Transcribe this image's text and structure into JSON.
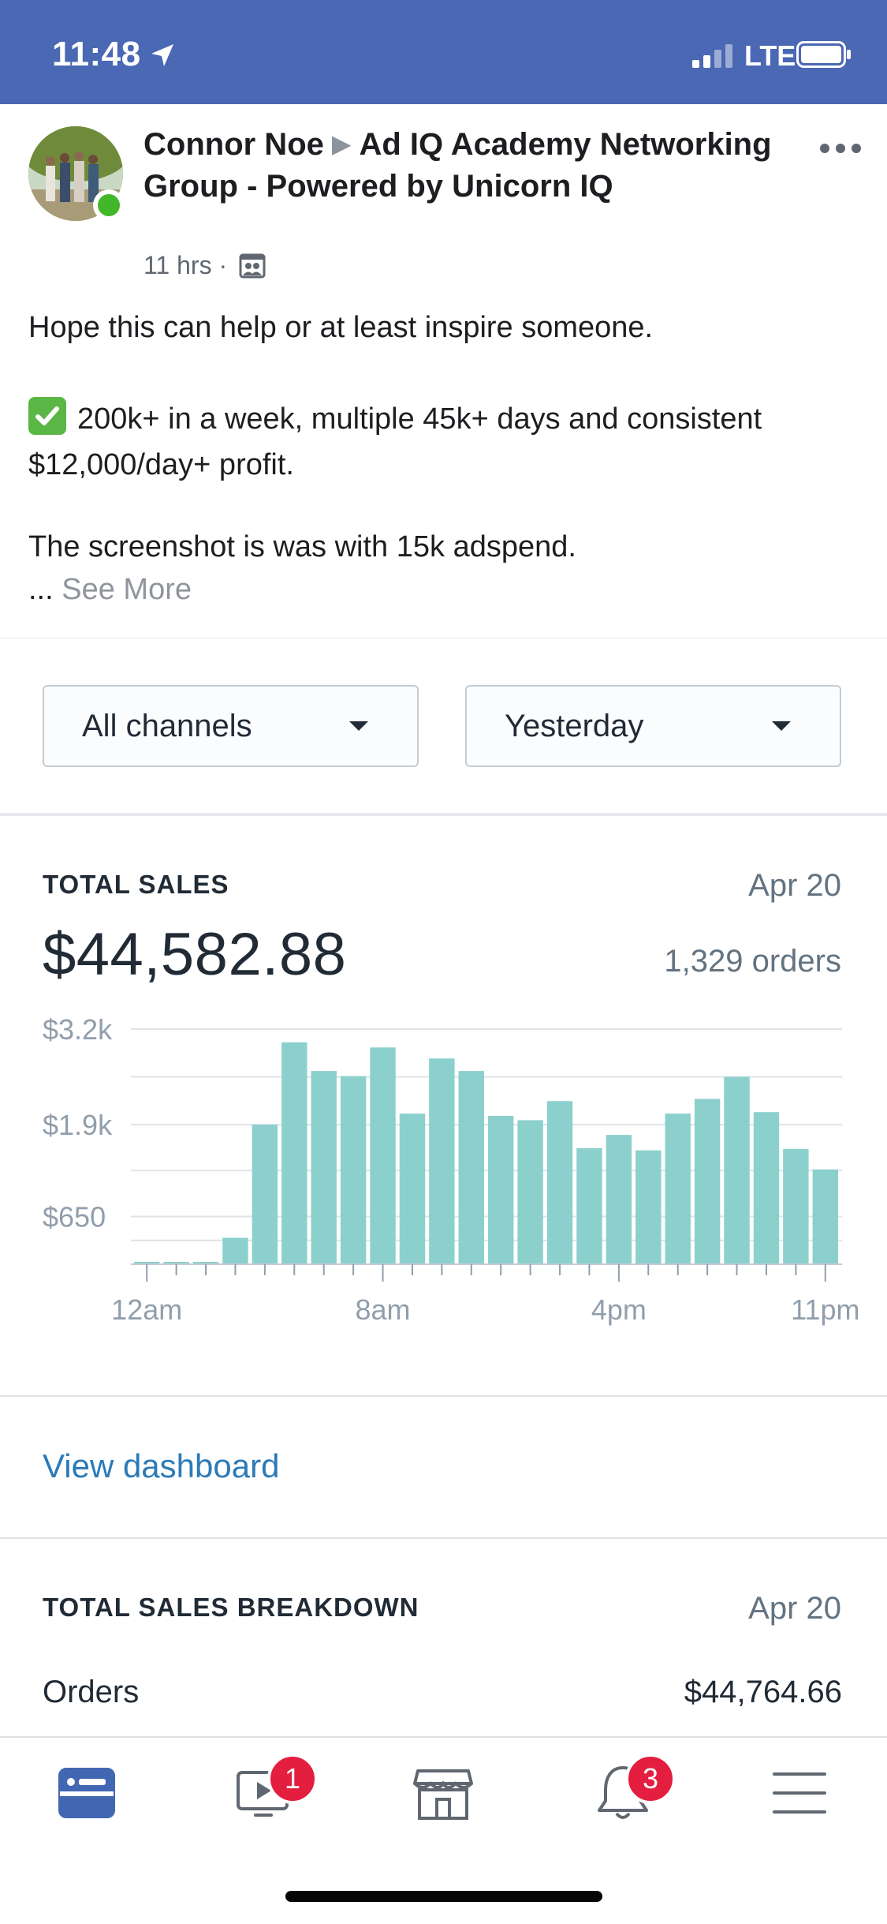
{
  "status_bar": {
    "time": "11:48",
    "network": "LTE"
  },
  "post": {
    "author": "Connor Noe",
    "group": "Ad IQ Academy Networking Group - Powered by Unicorn IQ",
    "time_ago": "11 hrs",
    "separator": "·",
    "lines": [
      "Hope this can help or at least inspire someone.",
      "200k+ in a week, multiple 45k+ days and consistent $12,000/day+ profit.",
      "The screenshot is was with 15k adspend."
    ],
    "ellipsis": "...",
    "see_more": "See More"
  },
  "dashboard": {
    "channel_select": "All channels",
    "date_select": "Yesterday",
    "total_sales": {
      "label": "TOTAL SALES",
      "date": "Apr 20",
      "amount": "$44,582.88",
      "orders": "1,329 orders"
    },
    "view_dashboard": "View dashboard",
    "breakdown": {
      "label": "TOTAL SALES BREAKDOWN",
      "date": "Apr 20",
      "rows": [
        {
          "label": "Orders",
          "value": "$44,764.66"
        }
      ]
    }
  },
  "chart_data": {
    "type": "bar",
    "y_tick_labels": [
      "$3.2k",
      "$1.9k",
      "$650"
    ],
    "y_ticks": [
      3200,
      1900,
      650
    ],
    "x_tick_labels": [
      "12am",
      "8am",
      "4pm",
      "11pm"
    ],
    "x_tick_hours": [
      0,
      8,
      16,
      23
    ],
    "ylim": [
      0,
      3200
    ],
    "color": "#8bd0cc",
    "hours": [
      0,
      1,
      2,
      3,
      4,
      5,
      6,
      7,
      8,
      9,
      10,
      11,
      12,
      13,
      14,
      15,
      16,
      17,
      18,
      19,
      20,
      21,
      22,
      23
    ],
    "values": [
      30,
      30,
      30,
      360,
      1900,
      3020,
      2630,
      2560,
      2950,
      2050,
      2800,
      2630,
      2020,
      1960,
      2220,
      1580,
      1760,
      1550,
      2050,
      2250,
      2550,
      2070,
      1570,
      1290
    ]
  },
  "tab_bar": {
    "items": [
      {
        "icon": "news-feed-icon"
      },
      {
        "icon": "watch-icon",
        "badge": "1"
      },
      {
        "icon": "marketplace-icon"
      },
      {
        "icon": "notifications-icon",
        "badge": "3"
      },
      {
        "icon": "menu-icon"
      }
    ]
  },
  "colors": {
    "status_bar": "#4a68b3",
    "link": "#2b7ab8",
    "badge": "#e41e3f",
    "active_tab": "#4267b2"
  }
}
